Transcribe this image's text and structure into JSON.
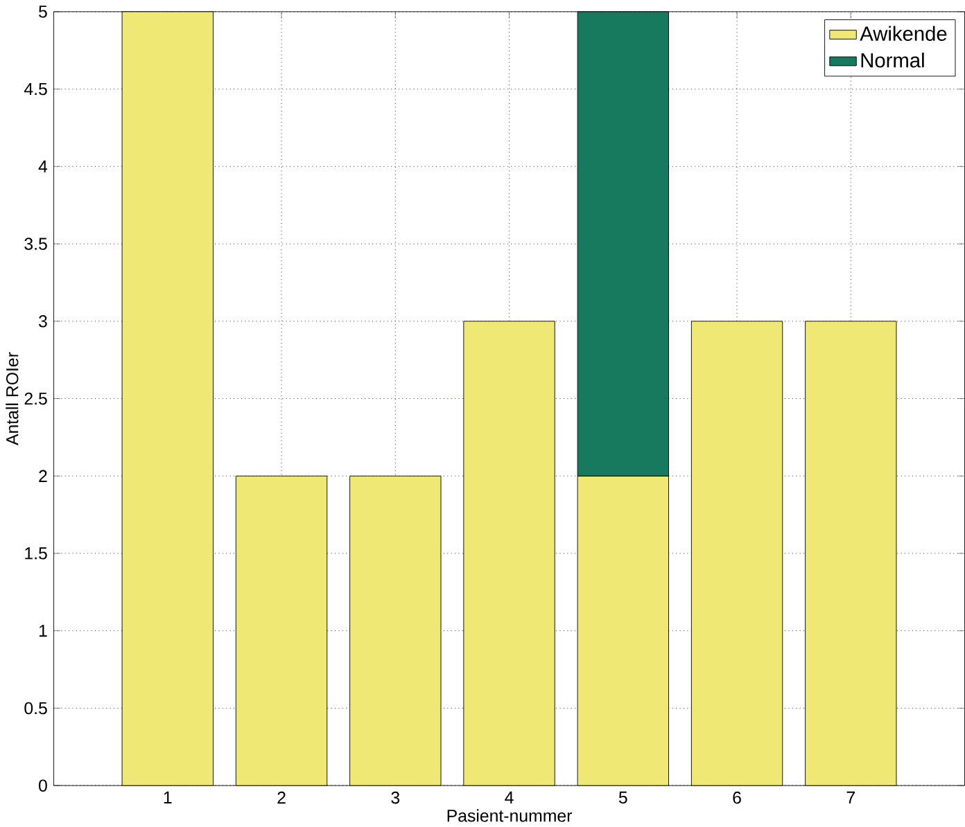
{
  "chart_data": {
    "type": "bar",
    "stacked": true,
    "xlabel": "Pasient-nummer",
    "ylabel": "Antall ROIer",
    "categories": [
      "1",
      "2",
      "3",
      "4",
      "5",
      "6",
      "7"
    ],
    "series": [
      {
        "name": "Awikende",
        "color": "#f0e874",
        "values": [
          5,
          2,
          2,
          3,
          2,
          3,
          3
        ]
      },
      {
        "name": "Normal",
        "color": "#177a5e",
        "values": [
          null,
          null,
          null,
          null,
          3,
          null,
          null
        ]
      }
    ],
    "ylim": [
      0,
      5
    ],
    "yticks": [
      0,
      0.5,
      1,
      1.5,
      2,
      2.5,
      3,
      3.5,
      4,
      4.5,
      5
    ],
    "grid": true,
    "legend": "top right"
  }
}
